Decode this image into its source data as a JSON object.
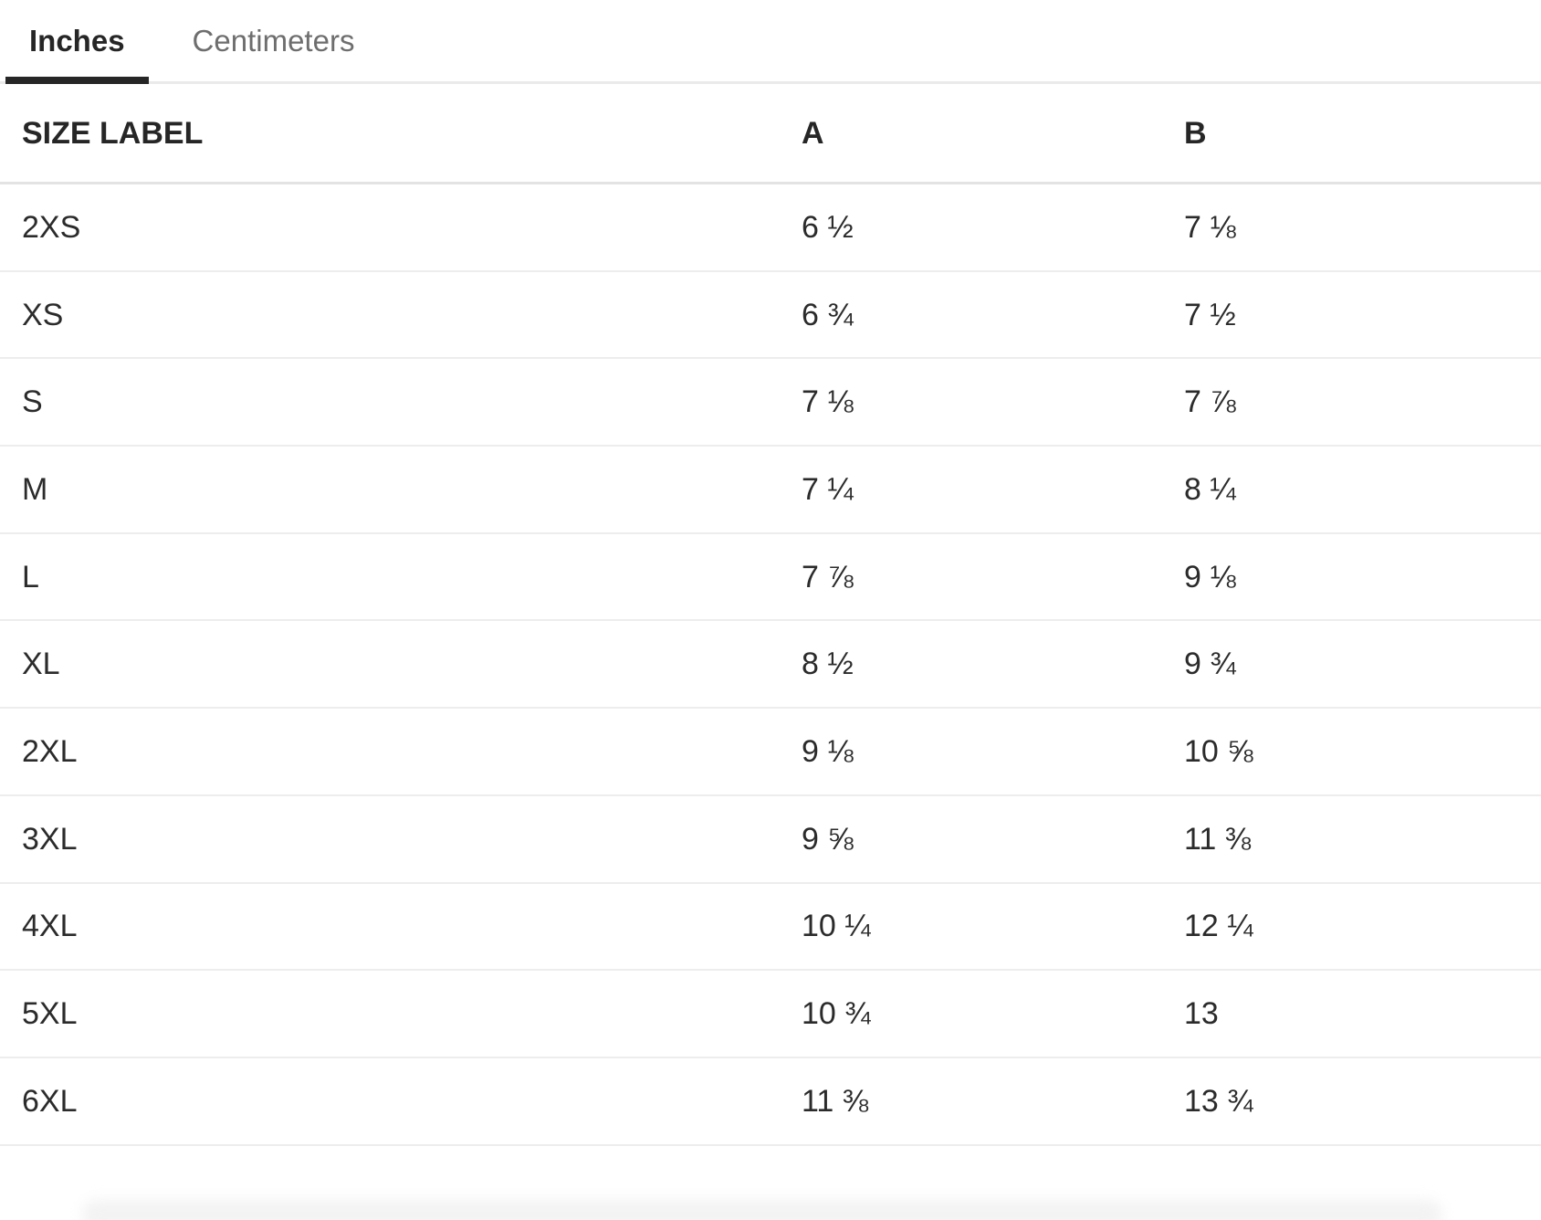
{
  "tabs": [
    {
      "label": "Inches",
      "active": true
    },
    {
      "label": "Centimeters",
      "active": false
    }
  ],
  "table": {
    "columns": [
      "SIZE LABEL",
      "A",
      "B"
    ],
    "rows": [
      {
        "size": "2XS",
        "a": "6 ½",
        "b": "7 ⅛"
      },
      {
        "size": "XS",
        "a": "6 ¾",
        "b": "7 ½"
      },
      {
        "size": "S",
        "a": "7 ⅛",
        "b": "7 ⅞"
      },
      {
        "size": "M",
        "a": "7 ¼",
        "b": "8 ¼"
      },
      {
        "size": "L",
        "a": "7 ⅞",
        "b": "9 ⅛"
      },
      {
        "size": "XL",
        "a": "8 ½",
        "b": "9 ¾"
      },
      {
        "size": "2XL",
        "a": "9 ⅛",
        "b": "10 ⅝"
      },
      {
        "size": "3XL",
        "a": "9 ⅝",
        "b": "11 ⅜"
      },
      {
        "size": "4XL",
        "a": "10 ¼",
        "b": "12 ¼"
      },
      {
        "size": "5XL",
        "a": "10 ¾",
        "b": "13"
      },
      {
        "size": "6XL",
        "a": "11 ⅜",
        "b": "13 ¾"
      }
    ]
  },
  "colors": {
    "text_dark": "#262626",
    "text_body": "#2b2b2b",
    "text_muted": "#6e6e6e",
    "active_tab_underline": "#262626",
    "tabbar_divider": "#eaeaea",
    "header_divider": "#e3e3e3",
    "row_divider": "#ededed"
  }
}
